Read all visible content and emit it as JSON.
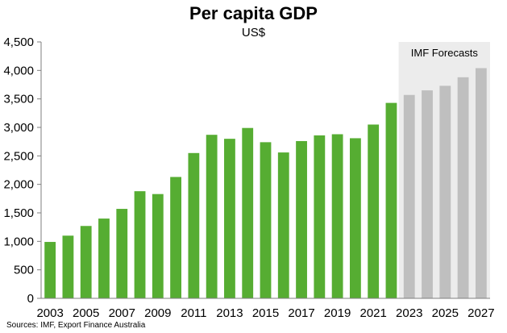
{
  "chart_data": {
    "type": "bar",
    "title": "Per capita GDP",
    "subtitle": "US$",
    "source": "Sources: IMF, Export Finance Australia",
    "forecast_label": "IMF Forecasts",
    "ylim": [
      0,
      4500
    ],
    "y_ticks": [
      "0",
      "500",
      "1,000",
      "1,500",
      "2,000",
      "2,500",
      "3,000",
      "3,500",
      "4,000",
      "4,500"
    ],
    "x_tick_labels": [
      "2003",
      "2005",
      "2007",
      "2009",
      "2011",
      "2013",
      "2015",
      "2017",
      "2019",
      "2021",
      "2023",
      "2025",
      "2027"
    ],
    "categories": [
      "2003",
      "2004",
      "2005",
      "2006",
      "2007",
      "2008",
      "2009",
      "2010",
      "2011",
      "2012",
      "2013",
      "2014",
      "2015",
      "2016",
      "2017",
      "2018",
      "2019",
      "2020",
      "2021",
      "2022",
      "2023",
      "2024",
      "2025",
      "2026",
      "2027"
    ],
    "values": [
      990,
      1100,
      1270,
      1400,
      1570,
      1880,
      1830,
      2130,
      2550,
      2870,
      2800,
      2990,
      2740,
      2560,
      2760,
      2860,
      2880,
      2810,
      3050,
      3430,
      3570,
      3650,
      3730,
      3880,
      4040
    ],
    "forecast_start": "2023",
    "colors": {
      "actual": "#56ad32",
      "forecast": "#bfbfbf",
      "forecast_band": "#ececec",
      "axis": "#7f7f7f"
    },
    "grid": false
  }
}
